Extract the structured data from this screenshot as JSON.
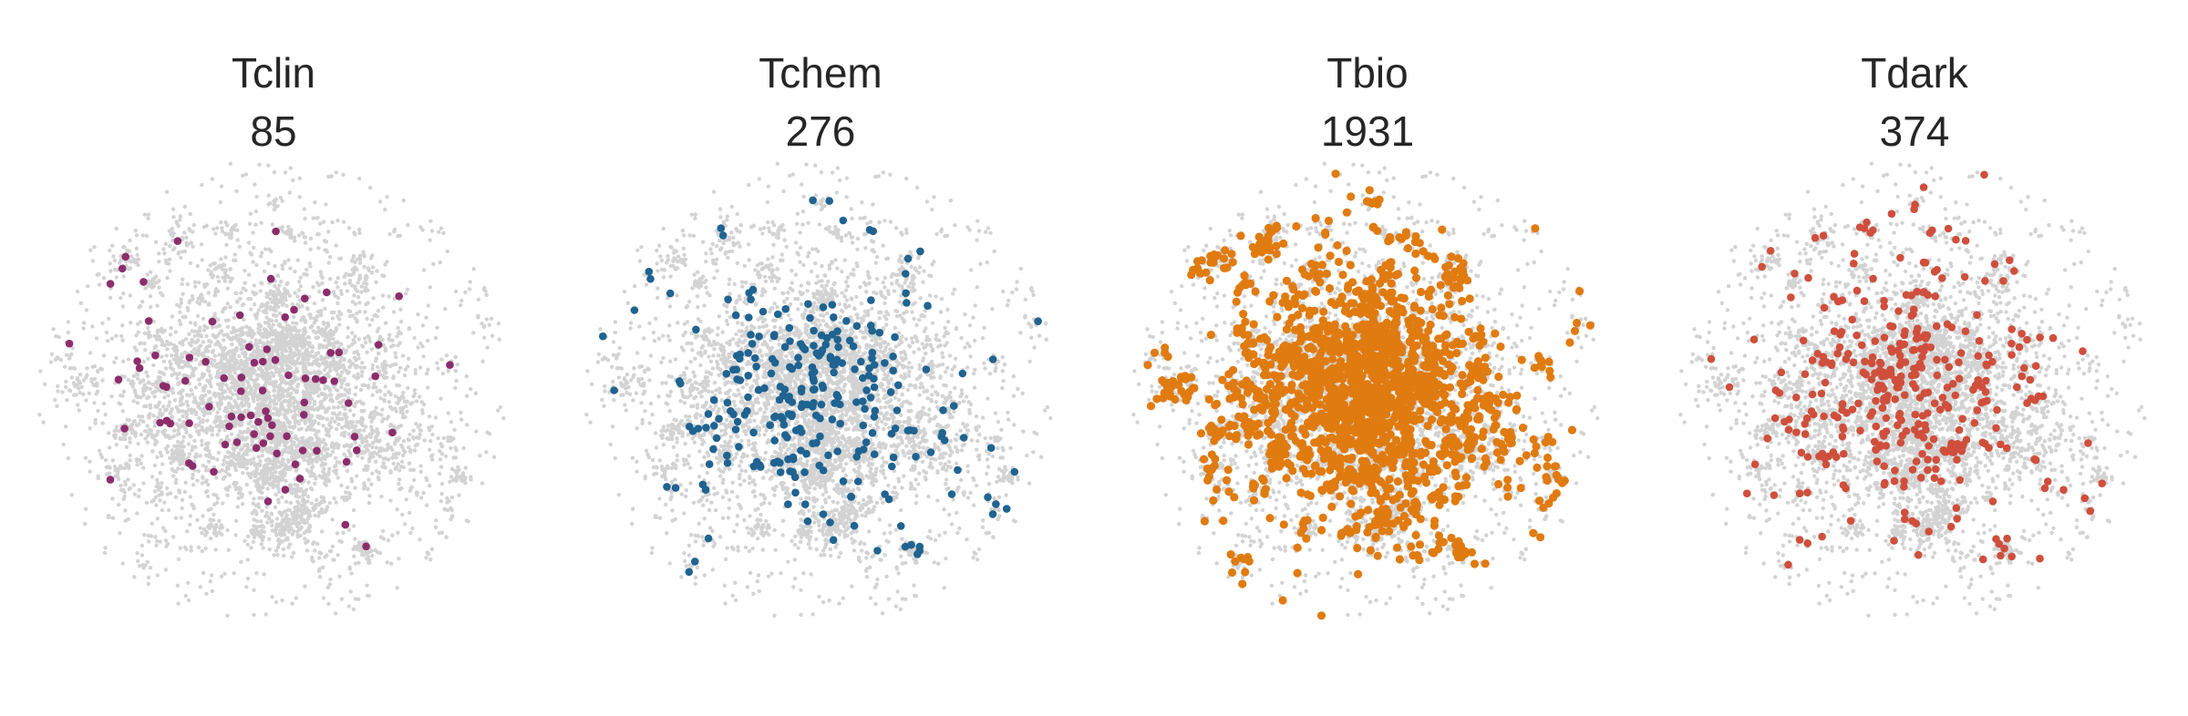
{
  "chart_data": [
    {
      "type": "scatter",
      "title": "Tclin",
      "subtitle": "85",
      "highlight_count": 85,
      "highlight_color": "#8c2d6b",
      "background_color": "#d3d3d3",
      "axes_visible": false,
      "grid": false
    },
    {
      "type": "scatter",
      "title": "Tchem",
      "subtitle": "276",
      "highlight_count": 276,
      "highlight_color": "#1f6391",
      "background_color": "#d3d3d3",
      "axes_visible": false,
      "grid": false
    },
    {
      "type": "scatter",
      "title": "Tbio",
      "subtitle": "1931",
      "highlight_count": 1931,
      "highlight_color": "#e07b10",
      "background_color": "#d3d3d3",
      "axes_visible": false,
      "grid": false
    },
    {
      "type": "scatter",
      "title": "Tdark",
      "subtitle": "374",
      "highlight_count": 374,
      "highlight_color": "#cf4f3c",
      "background_color": "#d3d3d3",
      "axes_visible": false,
      "grid": false
    }
  ]
}
